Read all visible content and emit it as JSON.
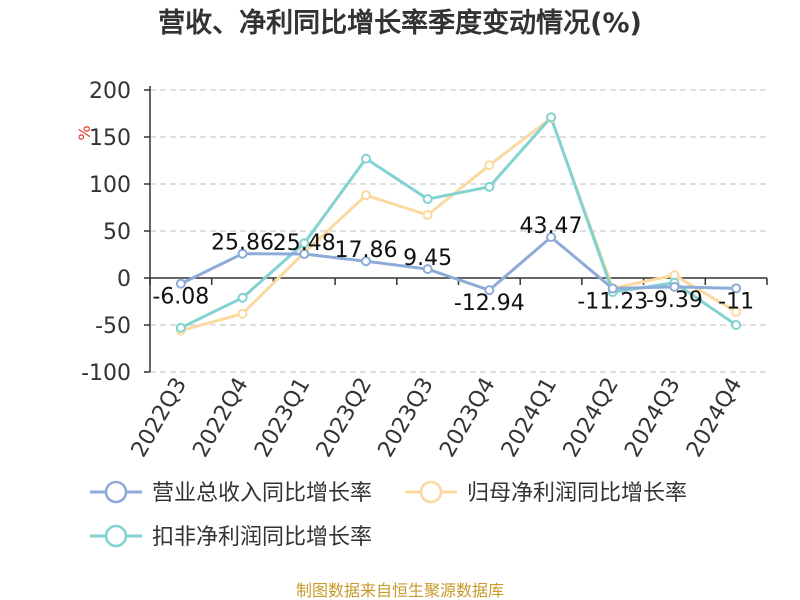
{
  "chart_data": {
    "type": "line",
    "title": "营收、净利同比增长率季度变动情况(%)",
    "ylabel": "%",
    "ylim": [
      -100,
      200
    ],
    "yticks": [
      200,
      150,
      100,
      50,
      0,
      -50,
      -100
    ],
    "grid": true,
    "legend_position": "bottom",
    "categories": [
      "2022Q3",
      "2022Q4",
      "2023Q1",
      "2023Q2",
      "2023Q3",
      "2023Q4",
      "2024Q1",
      "2024Q2",
      "2024Q3",
      "2024Q4"
    ],
    "series": [
      {
        "name": "营业总收入同比增长率",
        "color": "#8eaad8",
        "values": [
          -6.08,
          25.86,
          25.48,
          17.86,
          9.45,
          -12.94,
          43.47,
          -11.23,
          -9.39,
          -11
        ],
        "data_labels": [
          "-6.08",
          "25.86",
          "25.48",
          "17.86",
          "9.45",
          "-12.94",
          "43.47",
          "-11.23",
          "-9.39",
          "-11"
        ]
      },
      {
        "name": "归母净利润同比增长率",
        "color": "#fbd9a0",
        "values": [
          -56,
          -38,
          27,
          88,
          67,
          120,
          170,
          -11,
          3,
          -36
        ]
      },
      {
        "name": "扣非净利润同比增长率",
        "color": "#83d2d2",
        "values": [
          -53,
          -21,
          37,
          127,
          84,
          97,
          171,
          -15,
          -5,
          -50
        ]
      }
    ]
  },
  "source_text": "制图数据来自恒生聚源数据库"
}
